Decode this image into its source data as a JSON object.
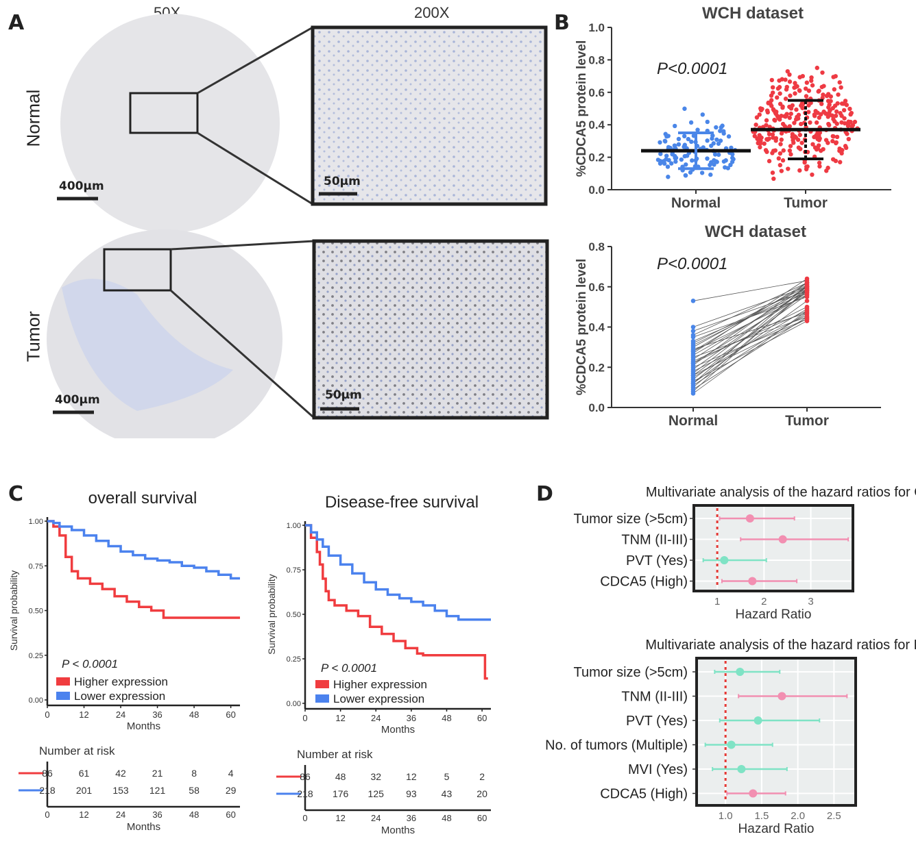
{
  "panel_letters": {
    "a": "A",
    "b": "B",
    "c": "C",
    "d": "D"
  },
  "panel_a": {
    "mag_low": "50X",
    "mag_high": "200X",
    "row_normal": "Normal",
    "row_tumor": "Tumor",
    "scale_low": "400µm",
    "scale_high": "50µm"
  },
  "colors": {
    "normal": "#4a86e8",
    "tumor": "#ee3a43",
    "km_high": "#f03c3f",
    "km_low": "#4b82ee",
    "forest_pink": "#f28fb1",
    "forest_green": "#7fe3c5"
  },
  "chart_data": [
    {
      "type": "scatter",
      "title": "WCH dataset",
      "ylabel": "%CDCA5 protein level",
      "categories": [
        "Normal",
        "Tumor"
      ],
      "ylim": [
        0,
        1.0
      ],
      "yticks": [
        "0.0",
        "0.2",
        "0.4",
        "0.6",
        "0.8",
        "1.0"
      ],
      "annotation": "P<0.0001",
      "series": [
        {
          "name": "Normal",
          "mean": 0.24,
          "sd_low": 0.13,
          "sd_high": 0.35,
          "min": 0.06,
          "max": 0.57
        },
        {
          "name": "Tumor",
          "mean": 0.37,
          "sd_low": 0.19,
          "sd_high": 0.55,
          "min": 0.0,
          "max": 0.85
        }
      ]
    },
    {
      "type": "line",
      "title": "WCH dataset",
      "ylabel": "%CDCA5 protein level",
      "categories": [
        "Normal",
        "Tumor"
      ],
      "ylim": [
        0,
        0.8
      ],
      "yticks": [
        "0.0",
        "0.2",
        "0.4",
        "0.6",
        "0.8"
      ],
      "annotation": "P<0.0001",
      "pairs": [
        [
          0.53,
          0.63
        ],
        [
          0.4,
          0.6
        ],
        [
          0.38,
          0.58
        ],
        [
          0.36,
          0.62
        ],
        [
          0.33,
          0.57
        ],
        [
          0.31,
          0.59
        ],
        [
          0.3,
          0.61
        ],
        [
          0.29,
          0.47
        ],
        [
          0.28,
          0.56
        ],
        [
          0.27,
          0.64
        ],
        [
          0.26,
          0.58
        ],
        [
          0.25,
          0.45
        ],
        [
          0.24,
          0.6
        ],
        [
          0.23,
          0.48
        ],
        [
          0.22,
          0.57
        ],
        [
          0.21,
          0.62
        ],
        [
          0.2,
          0.44
        ],
        [
          0.19,
          0.59
        ],
        [
          0.18,
          0.46
        ],
        [
          0.17,
          0.6
        ],
        [
          0.16,
          0.56
        ],
        [
          0.15,
          0.49
        ],
        [
          0.14,
          0.58
        ],
        [
          0.13,
          0.43
        ],
        [
          0.12,
          0.61
        ],
        [
          0.11,
          0.47
        ],
        [
          0.1,
          0.58
        ],
        [
          0.09,
          0.45
        ],
        [
          0.08,
          0.59
        ],
        [
          0.07,
          0.48
        ],
        [
          0.35,
          0.55
        ],
        [
          0.32,
          0.6
        ],
        [
          0.22,
          0.5
        ],
        [
          0.12,
          0.53
        ],
        [
          0.28,
          0.62
        ],
        [
          0.16,
          0.44
        ]
      ]
    },
    {
      "type": "line",
      "title": "overall survival",
      "xlabel": "Months",
      "ylabel": "Survival probability",
      "x_ticks": [
        0,
        12,
        24,
        36,
        48,
        60
      ],
      "xlim": [
        0,
        63
      ],
      "ylim": [
        0,
        1.0
      ],
      "yticks": [
        "0.00",
        "0.25",
        "0.50",
        "0.75",
        "1.00"
      ],
      "annotation": "P < 0.0001",
      "series": [
        {
          "name": "Higher expression",
          "x": [
            0,
            2,
            4,
            6,
            8,
            10,
            14,
            18,
            22,
            26,
            30,
            34,
            38,
            42,
            50,
            60,
            63
          ],
          "y": [
            1.0,
            0.97,
            0.92,
            0.8,
            0.72,
            0.68,
            0.65,
            0.62,
            0.58,
            0.55,
            0.52,
            0.5,
            0.46,
            0.46,
            0.46,
            0.46,
            0.46
          ]
        },
        {
          "name": "Lower expression",
          "x": [
            0,
            2,
            4,
            8,
            12,
            16,
            20,
            24,
            28,
            32,
            36,
            40,
            44,
            48,
            52,
            56,
            60,
            63
          ],
          "y": [
            1.0,
            0.99,
            0.97,
            0.95,
            0.92,
            0.89,
            0.86,
            0.83,
            0.81,
            0.79,
            0.78,
            0.77,
            0.75,
            0.74,
            0.72,
            0.7,
            0.68,
            0.68
          ]
        }
      ],
      "risk_table": {
        "title": "Number at risk",
        "higher": [
          "86",
          "61",
          "42",
          "21",
          "8",
          "4"
        ],
        "lower": [
          "218",
          "201",
          "153",
          "121",
          "58",
          "29"
        ],
        "xlabel": "Months"
      }
    },
    {
      "type": "line",
      "title": "Disease-free survival",
      "xlabel": "Months",
      "ylabel": "Survival probability",
      "x_ticks": [
        0,
        12,
        24,
        36,
        48,
        60
      ],
      "xlim": [
        0,
        63
      ],
      "ylim": [
        0,
        1.0
      ],
      "yticks": [
        "0.00",
        "0.25",
        "0.50",
        "0.75",
        "1.00"
      ],
      "annotation": "P < 0.0001",
      "series": [
        {
          "name": "Higher expression",
          "x": [
            0,
            2,
            4,
            5,
            6,
            7,
            8,
            10,
            14,
            18,
            22,
            26,
            30,
            34,
            38,
            40,
            50,
            59,
            61,
            62
          ],
          "y": [
            1.0,
            0.93,
            0.85,
            0.78,
            0.7,
            0.63,
            0.58,
            0.55,
            0.52,
            0.49,
            0.43,
            0.39,
            0.35,
            0.31,
            0.28,
            0.27,
            0.27,
            0.27,
            0.14,
            0.14
          ]
        },
        {
          "name": "Lower expression",
          "x": [
            0,
            2,
            4,
            6,
            8,
            12,
            16,
            20,
            24,
            28,
            32,
            36,
            40,
            44,
            48,
            52,
            56,
            60,
            63
          ],
          "y": [
            1.0,
            0.96,
            0.92,
            0.88,
            0.83,
            0.78,
            0.73,
            0.68,
            0.64,
            0.61,
            0.59,
            0.57,
            0.55,
            0.52,
            0.49,
            0.47,
            0.47,
            0.47,
            0.47
          ]
        }
      ],
      "risk_table": {
        "title": "Number at risk",
        "higher": [
          "86",
          "48",
          "32",
          "12",
          "5",
          "2"
        ],
        "lower": [
          "218",
          "176",
          "125",
          "93",
          "43",
          "20"
        ],
        "xlabel": "Months"
      }
    },
    {
      "type": "scatter",
      "title": "Multivariate analysis of the hazard ratios for OS",
      "xlabel": "Hazard Ratio",
      "xlim": [
        0.5,
        3.9
      ],
      "x_ticks": [
        "1",
        "2",
        "3"
      ],
      "reference_line": 1,
      "series": [
        {
          "name": "Tumor size (>5cm)",
          "hr": 1.7,
          "lo": 1.05,
          "hi": 2.65,
          "sig": true
        },
        {
          "name": "TNM (II-III)",
          "hr": 2.4,
          "lo": 1.5,
          "hi": 3.8,
          "sig": true
        },
        {
          "name": "PVT (Yes)",
          "hr": 1.15,
          "lo": 0.7,
          "hi": 2.05,
          "sig": false
        },
        {
          "name": "CDCA5 (High)",
          "hr": 1.75,
          "lo": 1.1,
          "hi": 2.7,
          "sig": true
        }
      ]
    },
    {
      "type": "scatter",
      "title": "Multivariate analysis of the hazard ratios for DFS",
      "xlabel": "Hazard Ratio",
      "xlim": [
        0.6,
        2.8
      ],
      "x_ticks": [
        "1.0",
        "1.5",
        "2.0",
        "2.5"
      ],
      "reference_line": 1,
      "series": [
        {
          "name": "Tumor size (>5cm)",
          "hr": 1.2,
          "lo": 0.85,
          "hi": 1.75,
          "sig": false
        },
        {
          "name": "TNM (II-III)",
          "hr": 1.78,
          "lo": 1.18,
          "hi": 2.68,
          "sig": true
        },
        {
          "name": "PVT (Yes)",
          "hr": 1.45,
          "lo": 0.92,
          "hi": 2.3,
          "sig": false
        },
        {
          "name": "No. of tumors (Multiple)",
          "hr": 1.08,
          "lo": 0.72,
          "hi": 1.65,
          "sig": false
        },
        {
          "name": "MVI (Yes)",
          "hr": 1.22,
          "lo": 0.82,
          "hi": 1.85,
          "sig": false
        },
        {
          "name": "CDCA5 (High)",
          "hr": 1.38,
          "lo": 1.02,
          "hi": 1.83,
          "sig": true
        }
      ]
    }
  ]
}
